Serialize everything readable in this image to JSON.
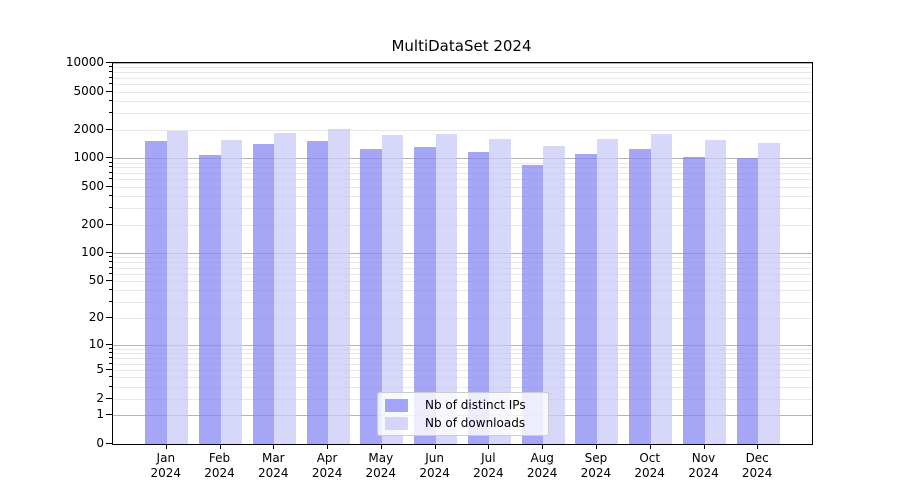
{
  "chart_data": {
    "type": "bar",
    "title": "MultiDataSet 2024",
    "x_categories": [
      "Jan",
      "Feb",
      "Mar",
      "Apr",
      "May",
      "Jun",
      "Jul",
      "Aug",
      "Sep",
      "Oct",
      "Nov",
      "Dec"
    ],
    "x_year_label": "2024",
    "y_scale": "log1p",
    "ylim": [
      0,
      10000
    ],
    "y_tick_values": [
      0,
      1,
      2,
      5,
      10,
      20,
      50,
      100,
      200,
      500,
      1000,
      2000,
      5000,
      10000
    ],
    "y_tick_labels": [
      "0",
      "1",
      "2",
      "5",
      "10",
      "20",
      "50",
      "100",
      "200",
      "500",
      "1000",
      "2000",
      "5000",
      "10000"
    ],
    "grid": "on",
    "legend_position": "lower center",
    "series": [
      {
        "name": "Nb of distinct IPs",
        "color": "#a8a8f5",
        "fill": "rgba(132,132,243,0.72)",
        "values": [
          1530,
          1080,
          1400,
          1520,
          1260,
          1310,
          1160,
          845,
          1115,
          1240,
          1030,
          995
        ]
      },
      {
        "name": "Nb of downloads",
        "color": "#d8d8f8",
        "fill": "rgba(199,199,246,0.72)",
        "values": [
          1930,
          1550,
          1830,
          2040,
          1740,
          1800,
          1610,
          1350,
          1610,
          1790,
          1550,
          1440
        ]
      }
    ],
    "grid_colors": {
      "major": "#b4b4b4",
      "minor": "#e7e7e7"
    }
  }
}
